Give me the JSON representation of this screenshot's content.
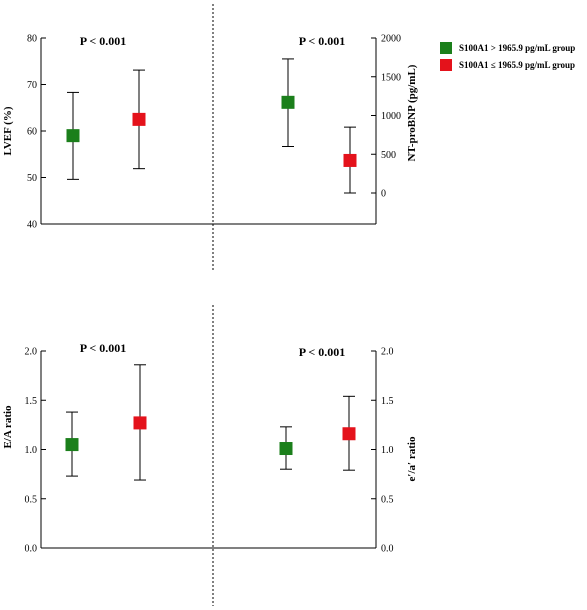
{
  "legend": [
    {
      "label": "S100A1 > 1965.9 pg/mL group",
      "color": "#1b7f1b"
    },
    {
      "label": "S100A1 ≤ 1965.9 pg/mL group",
      "color": "#e4121b"
    }
  ],
  "chart_data": [
    {
      "type": "errorbar",
      "panel": "top",
      "left_axis": {
        "label": "LVEF (%)",
        "ylim": [
          40,
          80
        ],
        "ticks": [
          "40",
          "50",
          "60",
          "70",
          "80"
        ]
      },
      "right_axis": {
        "label": "NT-proBNP (pg/mL)",
        "ylim": [
          -400,
          2000
        ],
        "ticks": [
          "0",
          "500",
          "1000",
          "1500",
          "2000"
        ]
      },
      "p_values": [
        "P < 0.001",
        "P < 0.001"
      ],
      "groups": [
        {
          "measure": "LVEF (%)",
          "axis": "left",
          "points": [
            {
              "series": "S100A1 > 1965.9 pg/mL group",
              "mean": 59,
              "low": 49.6,
              "high": 68.3
            },
            {
              "series": "S100A1 ≤ 1965.9 pg/mL group",
              "mean": 62.5,
              "low": 51.9,
              "high": 73.1
            }
          ]
        },
        {
          "measure": "NT-proBNP (pg/mL)",
          "axis": "right",
          "points": [
            {
              "series": "S100A1 > 1965.9 pg/mL group",
              "mean": 1170,
              "low": 600,
              "high": 1730
            },
            {
              "series": "S100A1 ≤ 1965.9 pg/mL group",
              "mean": 420,
              "low": 0,
              "high": 850
            }
          ]
        }
      ]
    },
    {
      "type": "errorbar",
      "panel": "bottom",
      "left_axis": {
        "label": "E/A ratio",
        "ylim": [
          0,
          2
        ],
        "ticks": [
          "0.0",
          "0.5",
          "1.0",
          "1.5",
          "2.0"
        ]
      },
      "right_axis": {
        "label": "e′/a′ ratio",
        "ylim": [
          0,
          2
        ],
        "ticks": [
          "0.0",
          "0.5",
          "1.0",
          "1.5",
          "2.0"
        ]
      },
      "p_values": [
        "P < 0.001",
        "P < 0.001"
      ],
      "groups": [
        {
          "measure": "E/A ratio",
          "axis": "left",
          "points": [
            {
              "series": "S100A1 > 1965.9 pg/mL group",
              "mean": 1.05,
              "low": 0.73,
              "high": 1.38
            },
            {
              "series": "S100A1 ≤ 1965.9 pg/mL group",
              "mean": 1.27,
              "low": 0.69,
              "high": 1.86
            }
          ]
        },
        {
          "measure": "e′/a′ ratio",
          "axis": "right",
          "points": [
            {
              "series": "S100A1 > 1965.9 pg/mL group",
              "mean": 1.01,
              "low": 0.8,
              "high": 1.23
            },
            {
              "series": "S100A1 ≤ 1965.9 pg/mL group",
              "mean": 1.16,
              "low": 0.79,
              "high": 1.54
            }
          ]
        }
      ]
    }
  ]
}
